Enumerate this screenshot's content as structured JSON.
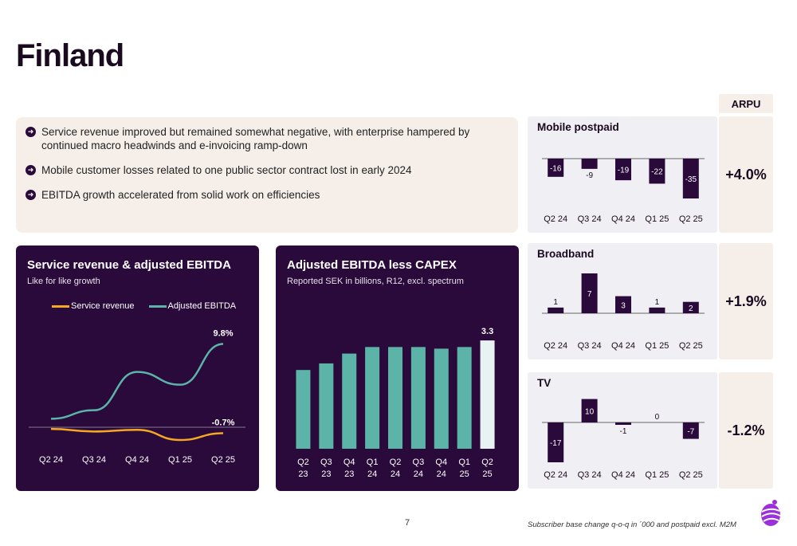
{
  "page": {
    "title": "Finland",
    "page_number": "7",
    "footnote": "Subscriber base change q-o-q in ´000 and postpaid excl. M2M"
  },
  "bullets": [
    "Service revenue improved but remained somewhat negative, with enterprise hampered by continued macro headwinds and e-invoicing ramp-down",
    "Mobile customer losses related to one public sector contract lost in early 2024",
    "EBITDA growth accelerated from solid work on efficiencies"
  ],
  "arpu_header": "ARPU",
  "colors": {
    "dark_purple": "#2a0a3a",
    "teal": "#5cb3a8",
    "orange": "#f5a623",
    "beige": "#f6efe9",
    "light_card": "#f0eff3",
    "logo_purple": "#9b2fd9"
  },
  "chart_data": [
    {
      "type": "line",
      "title": "Service revenue & adjusted EBITDA",
      "subtitle": "Like for like growth",
      "categories": [
        "Q2 24",
        "Q3 24",
        "Q4 24",
        "Q1 25",
        "Q2 25"
      ],
      "series": [
        {
          "name": "Service revenue",
          "values": [
            -0.2,
            -0.5,
            -0.3,
            -1.5,
            -0.7
          ]
        },
        {
          "name": "Adjusted EBITDA",
          "values": [
            1.0,
            2.0,
            6.5,
            5.0,
            9.8
          ]
        }
      ],
      "data_labels": {
        "Service revenue": "-0.7%",
        "Adjusted EBITDA": "9.8%"
      },
      "ylim": [
        -3,
        12
      ]
    },
    {
      "type": "bar",
      "title": "Adjusted EBITDA less CAPEX",
      "subtitle": "Reported SEK in billions, R12, excl. spectrum",
      "categories": [
        "Q2 23",
        "Q3 23",
        "Q4 23",
        "Q1 24",
        "Q2 24",
        "Q3 24",
        "Q4 24",
        "Q1 25",
        "Q2 25"
      ],
      "values": [
        2.4,
        2.6,
        2.9,
        3.1,
        3.1,
        3.1,
        3.05,
        3.1,
        3.3
      ],
      "highlight_label": "3.3",
      "ylim": [
        0,
        3.4
      ]
    },
    {
      "type": "bar",
      "title": "Mobile postpaid",
      "categories": [
        "Q2 24",
        "Q3 24",
        "Q4 24",
        "Q1 25",
        "Q2 25"
      ],
      "values": [
        -16,
        -9,
        -19,
        -22,
        -35
      ],
      "arpu": "+4.0%"
    },
    {
      "type": "bar",
      "title": "Broadband",
      "categories": [
        "Q2 24",
        "Q3 24",
        "Q4 24",
        "Q1 25",
        "Q2 25"
      ],
      "values": [
        1,
        7,
        3,
        1,
        2
      ],
      "arpu": "+1.9%"
    },
    {
      "type": "bar",
      "title": "TV",
      "categories": [
        "Q2 24",
        "Q3 24",
        "Q4 24",
        "Q1 25",
        "Q2 25"
      ],
      "values": [
        -17,
        10,
        -1,
        0,
        -7
      ],
      "arpu": "-1.2%"
    }
  ]
}
